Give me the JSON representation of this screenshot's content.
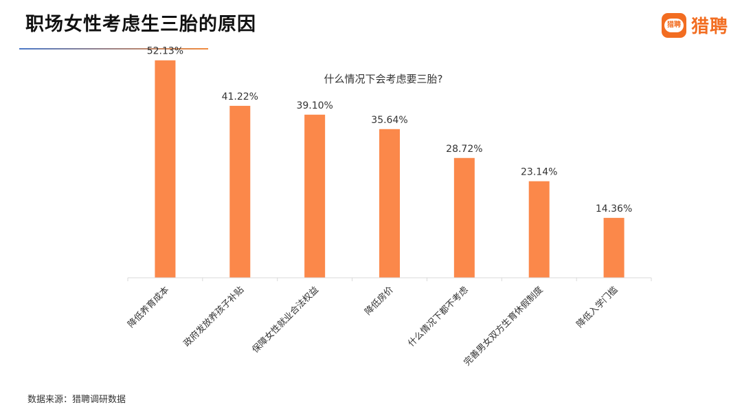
{
  "header": {
    "title": "职场女性考虑生三胎的原因"
  },
  "brand": {
    "name": "猎聘",
    "badge_text": "猎聘",
    "color": "#f26d21"
  },
  "footer": {
    "source": "数据来源：猎聘调研数据"
  },
  "colors": {
    "bar": "#fb884a",
    "axis": "#d9d9d9",
    "underline_start": "#4a78c8",
    "underline_end": "#f28a3c"
  },
  "chart_data": {
    "type": "bar",
    "title": "什么情况下会考虑要三胎?",
    "categories": [
      "降低养育成本",
      "政府发放养孩子补贴",
      "保障女性就业合法权益",
      "降低房价",
      "什么情况下都不考虑",
      "完善男女双方生育休假制度",
      "降低入学门槛"
    ],
    "values": [
      52.13,
      41.22,
      39.1,
      35.64,
      28.72,
      23.14,
      14.36
    ],
    "value_labels": [
      "52.13%",
      "41.22%",
      "39.10%",
      "35.64%",
      "28.72%",
      "23.14%",
      "14.36%"
    ],
    "unit": "%",
    "ylim": [
      0,
      60
    ],
    "xlabel": "",
    "ylabel": "",
    "grid": false,
    "legend": "none",
    "category_label_rotation": "-45deg"
  }
}
